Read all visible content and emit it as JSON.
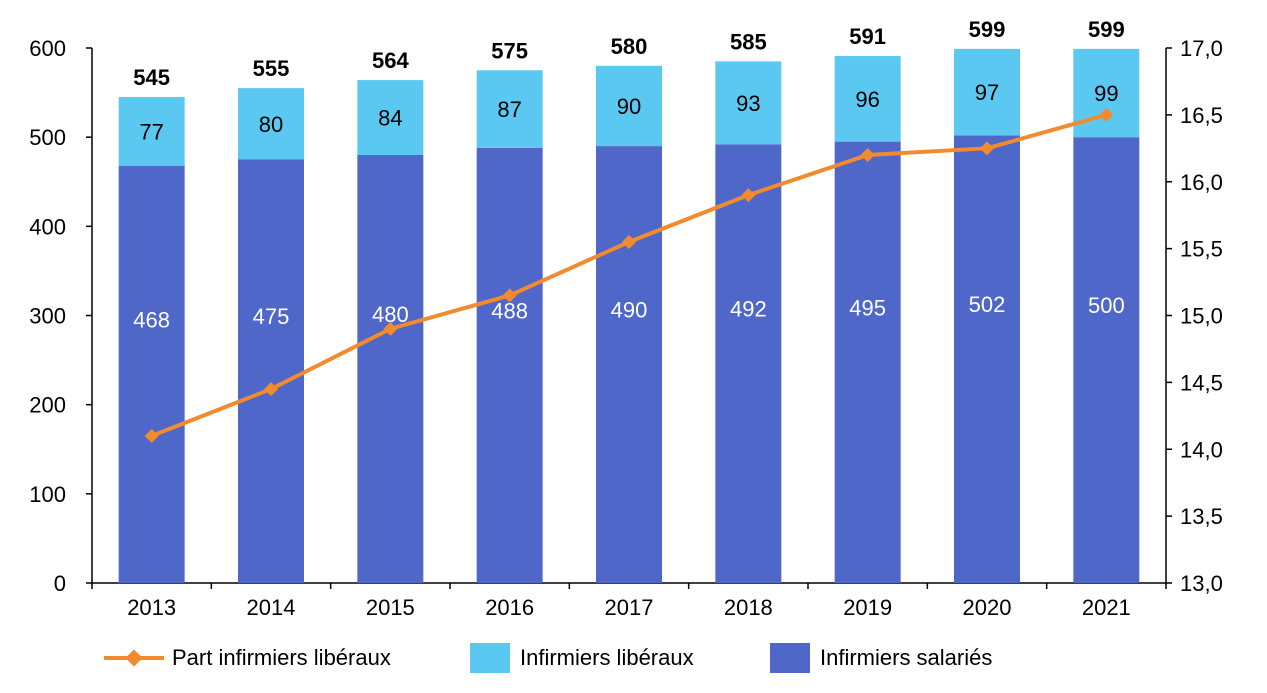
{
  "chart_data": {
    "type": "bar",
    "stacked": true,
    "categories": [
      "2013",
      "2014",
      "2015",
      "2016",
      "2017",
      "2018",
      "2019",
      "2020",
      "2021"
    ],
    "series": [
      {
        "name": "Infirmiers salariés",
        "values": [
          468,
          475,
          480,
          488,
          490,
          492,
          495,
          502,
          500
        ],
        "color": "#4F67C9",
        "axis": "left",
        "label_color": "#ffffff"
      },
      {
        "name": "Infirmiers libéraux",
        "values": [
          77,
          80,
          84,
          87,
          90,
          93,
          96,
          97,
          99
        ],
        "color": "#5BC8F2",
        "axis": "left",
        "label_color": "#000000"
      }
    ],
    "totals": [
      545,
      555,
      564,
      575,
      580,
      585,
      591,
      599,
      599
    ],
    "line_series": {
      "name": "Part infirmiers libéraux",
      "type": "line",
      "axis": "right",
      "values": [
        14.1,
        14.45,
        14.9,
        15.15,
        15.55,
        15.9,
        16.2,
        16.25,
        16.5
      ],
      "color": "#F28A2E",
      "marker": "diamond"
    },
    "y_left": {
      "min": 0,
      "max": 600,
      "ticks": [
        "0",
        "100",
        "200",
        "300",
        "400",
        "500",
        "600"
      ]
    },
    "y_right": {
      "min": 13.0,
      "max": 17.0,
      "ticks": [
        "13,0",
        "13,5",
        "14,0",
        "14,5",
        "15,0",
        "15,5",
        "16,0",
        "16,5",
        "17,0"
      ]
    },
    "grid": false,
    "legend_position": "bottom",
    "title": "",
    "xlabel": "",
    "ylabel": ""
  },
  "legend": {
    "items": [
      {
        "label": "Part infirmiers libéraux",
        "kind": "line",
        "color": "#F28A2E"
      },
      {
        "label": "Infirmiers libéraux",
        "kind": "box",
        "color": "#5BC8F2"
      },
      {
        "label": "Infirmiers salariés",
        "kind": "box",
        "color": "#4F67C9"
      }
    ]
  }
}
